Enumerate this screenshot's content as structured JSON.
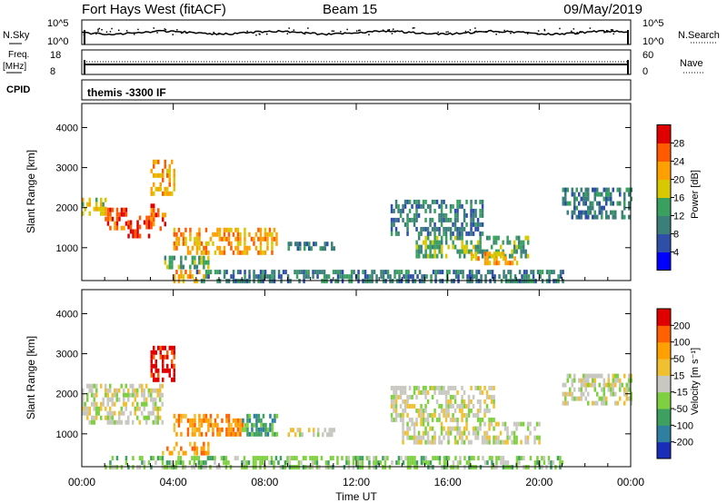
{
  "header": {
    "title": "Fort Hays West (fitACF)",
    "beam": "Beam 15",
    "date": "09/May/2019"
  },
  "strips": {
    "nsky_label": "N.Sky",
    "nsky_ticks": [
      "10^5",
      "10^0"
    ],
    "nsearch_label": "N.Search",
    "nsearch_ticks": [
      "10^5",
      "10^0"
    ],
    "freq_label_1": "Freq.",
    "freq_label_2": "[MHz]",
    "freq_ticks": [
      "18",
      "8"
    ],
    "nave_label": "Nave",
    "nave_ticks": [
      "60",
      "0"
    ],
    "cpid_label": "CPID",
    "cpid_text": "themis -3300 IF"
  },
  "chart_data": [
    {
      "type": "heatmap",
      "name": "power",
      "ylabel": "Slant Range [km]",
      "yticks": [
        "4000",
        "3000",
        "2000",
        "1000"
      ],
      "ytick_values": [
        4000,
        3000,
        2000,
        1000
      ],
      "ylim": [
        180,
        4600
      ],
      "xlim_hours": [
        0,
        24
      ],
      "colorbar_label": "Power [dB]",
      "colorbar_ticks": [
        "28",
        "24",
        "20",
        "16",
        "12",
        "8",
        "4"
      ],
      "colorbar_range": [
        0,
        32
      ],
      "colorbar_colors": [
        "#0000ff",
        "#2e4fa8",
        "#3a7f7a",
        "#3aa060",
        "#d8c800",
        "#ffa000",
        "#ff5a00",
        "#e00000"
      ],
      "regions": [
        {
          "x0": 0.0,
          "x1": 1.0,
          "r0": 1850,
          "r1": 2250,
          "level": 4
        },
        {
          "x0": 1.0,
          "x1": 2.0,
          "r0": 1500,
          "r1": 2000,
          "level": 6
        },
        {
          "x0": 2.0,
          "x1": 3.0,
          "r0": 1300,
          "r1": 1800,
          "level": 7
        },
        {
          "x0": 3.0,
          "x1": 3.6,
          "r0": 1500,
          "r1": 2100,
          "level": 6
        },
        {
          "x0": 3.0,
          "x1": 4.0,
          "r0": 2300,
          "r1": 3200,
          "level": 5
        },
        {
          "x0": 4.0,
          "x1": 8.5,
          "r0": 900,
          "r1": 1500,
          "level": 5
        },
        {
          "x0": 3.5,
          "x1": 5.5,
          "r0": 500,
          "r1": 800,
          "level": 3
        },
        {
          "x0": 4.0,
          "x1": 5.5,
          "r0": 180,
          "r1": 450,
          "level": 5
        },
        {
          "x0": 9.0,
          "x1": 11.0,
          "r0": 950,
          "r1": 1150,
          "level": 2
        },
        {
          "x0": 14.5,
          "x1": 19.5,
          "r0": 800,
          "r1": 1300,
          "level": 3
        },
        {
          "x0": 17.0,
          "x1": 19.0,
          "r0": 600,
          "r1": 900,
          "level": 5
        },
        {
          "x0": 13.5,
          "x1": 17.5,
          "r0": 1300,
          "r1": 2200,
          "level": 2
        },
        {
          "x0": 21.0,
          "x1": 24.0,
          "r0": 1800,
          "r1": 2500,
          "level": 2
        },
        {
          "x0": 5.0,
          "x1": 21.0,
          "r0": 180,
          "r1": 450,
          "level": 2
        }
      ]
    },
    {
      "type": "heatmap",
      "name": "velocity",
      "ylabel": "Slant Range [km]",
      "yticks": [
        "4000",
        "3000",
        "2000",
        "1000"
      ],
      "ytick_values": [
        4000,
        3000,
        2000,
        1000
      ],
      "ylim": [
        180,
        4600
      ],
      "xlim_hours": [
        0,
        24
      ],
      "colorbar_label": "Velocity [m s⁻¹]",
      "colorbar_ticks": [
        "200",
        "100",
        "50",
        "15",
        "-15",
        "-50",
        "-100",
        "-200"
      ],
      "colorbar_colors": [
        "#1a2db8",
        "#2f7fa0",
        "#3ea060",
        "#7fd040",
        "#c8c8c0",
        "#f0c030",
        "#ffa000",
        "#ff6000",
        "#e00000"
      ],
      "regions": [
        {
          "x0": 0.0,
          "x1": 3.5,
          "r0": 1300,
          "r1": 2250,
          "level": 4
        },
        {
          "x0": 3.0,
          "x1": 4.0,
          "r0": 2400,
          "r1": 3200,
          "level": 8
        },
        {
          "x0": 4.0,
          "x1": 7.0,
          "r0": 950,
          "r1": 1500,
          "level": 6
        },
        {
          "x0": 7.0,
          "x1": 8.5,
          "r0": 950,
          "r1": 1500,
          "level": 2
        },
        {
          "x0": 3.5,
          "x1": 5.5,
          "r0": 500,
          "r1": 800,
          "level": 6
        },
        {
          "x0": 9.0,
          "x1": 11.0,
          "r0": 950,
          "r1": 1150,
          "level": 4
        },
        {
          "x0": 14.0,
          "x1": 20.0,
          "r0": 800,
          "r1": 1300,
          "level": 4
        },
        {
          "x0": 13.5,
          "x1": 18.0,
          "r0": 1300,
          "r1": 2200,
          "level": 4
        },
        {
          "x0": 21.0,
          "x1": 24.0,
          "r0": 1800,
          "r1": 2500,
          "level": 4
        },
        {
          "x0": 1.0,
          "x1": 21.0,
          "r0": 180,
          "r1": 450,
          "level": 3
        }
      ]
    }
  ],
  "xaxis": {
    "ticks": [
      "00:00",
      "04:00",
      "08:00",
      "12:00",
      "16:00",
      "20:00",
      "00:00"
    ],
    "tick_values": [
      0,
      4,
      8,
      12,
      16,
      20,
      24
    ],
    "label": "Time UT"
  }
}
